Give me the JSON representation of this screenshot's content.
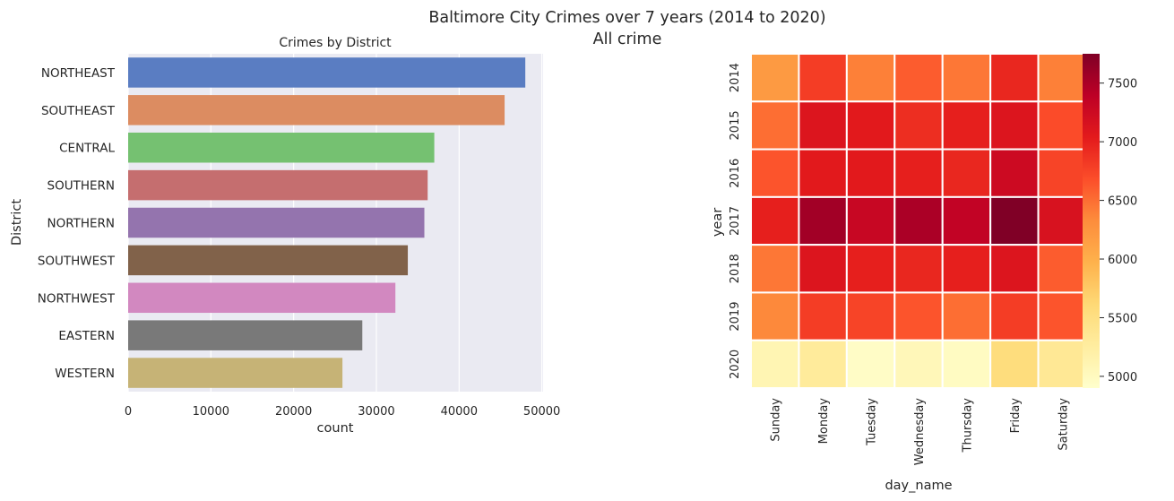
{
  "suptitle": "Baltimore City Crimes over 7 years (2014 to 2020)",
  "subtitle": "All crime",
  "colors": {
    "axes_bg": "#eaeaf2",
    "grid": "#ffffff",
    "bars": [
      "#5a7dc2",
      "#dc8c61",
      "#75c171",
      "#c56e6f",
      "#9474ae",
      "#81624a",
      "#d288c0",
      "#797979",
      "#c6b376"
    ]
  },
  "chart_data": [
    {
      "type": "bar",
      "orientation": "horizontal",
      "title": "Crimes by District",
      "xlabel": "count",
      "ylabel": "District",
      "categories": [
        "NORTHEAST",
        "SOUTHEAST",
        "CENTRAL",
        "SOUTHERN",
        "NORTHERN",
        "SOUTHWEST",
        "NORTHWEST",
        "EASTERN",
        "WESTERN"
      ],
      "values": [
        48000,
        45500,
        37000,
        36200,
        35800,
        33800,
        32300,
        28300,
        25900
      ],
      "xlim": [
        0,
        50000
      ],
      "xticks": [
        "0",
        "10000",
        "20000",
        "30000",
        "40000",
        "50000"
      ],
      "grid": true
    },
    {
      "type": "heatmap",
      "xlabel": "day_name",
      "ylabel": "year",
      "x": [
        "Sunday",
        "Monday",
        "Tuesday",
        "Wednesday",
        "Thursday",
        "Friday",
        "Saturday"
      ],
      "y": [
        "2014",
        "2015",
        "2016",
        "2017",
        "2018",
        "2019",
        "2020"
      ],
      "values": [
        [
          6200,
          6800,
          6400,
          6600,
          6450,
          6950,
          6400
        ],
        [
          6500,
          7100,
          7050,
          6900,
          7000,
          7100,
          6700
        ],
        [
          6650,
          7050,
          7050,
          7000,
          6950,
          7250,
          6750
        ],
        [
          7000,
          7550,
          7300,
          7500,
          7350,
          7750,
          7150
        ],
        [
          6450,
          7100,
          7000,
          6950,
          7000,
          7100,
          6600
        ],
        [
          6350,
          6800,
          6750,
          6650,
          6500,
          6800,
          6650
        ],
        [
          5100,
          5300,
          4950,
          5050,
          4980,
          5550,
          5350
        ]
      ],
      "colorbar_ticks": [
        "5000",
        "5500",
        "6000",
        "6500",
        "7000",
        "7500"
      ],
      "colormap": "YlOrRd",
      "vmin": 4900,
      "vmax": 7750
    }
  ]
}
